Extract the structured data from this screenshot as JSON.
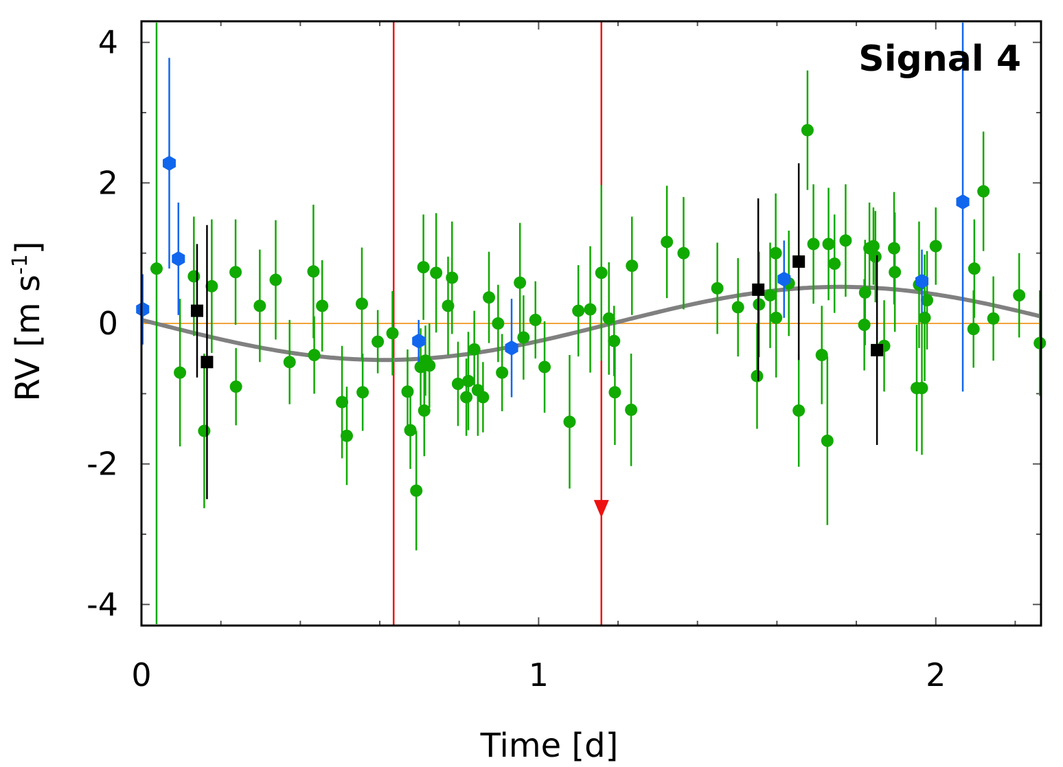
{
  "chart_data": {
    "type": "scatter",
    "title": "Signal 4",
    "xlabel": "Time [d]",
    "ylabel_main": "RV [m s",
    "ylabel_sup": "-1",
    "ylabel_close": "]",
    "xlim": [
      0,
      2.265
    ],
    "ylim": [
      -4.3,
      4.3
    ],
    "x_ticks": [
      0,
      1,
      2
    ],
    "x_tick_labels": [
      "0",
      "1",
      "2"
    ],
    "y_ticks": [
      -4,
      -2,
      0,
      2,
      4
    ],
    "y_tick_labels": [
      "-4",
      "-2",
      "0",
      "2",
      "4"
    ],
    "x_minor_ticks": [
      0.2,
      0.4,
      0.6,
      0.8,
      1.2,
      1.4,
      1.6,
      1.8,
      2.2
    ],
    "y_minor_ticks": [
      -3,
      -1,
      1,
      3
    ],
    "zero_line_color": "#f2a33a",
    "vertical_lines": [
      {
        "x": 0.635,
        "color": "#ee1111",
        "arrow": false
      },
      {
        "x": 1.158,
        "color": "#ee1111",
        "arrow": true,
        "arrow_y": -2.65
      }
    ],
    "model": {
      "color": "#808080",
      "period": 2.3,
      "amplitude": 0.52,
      "peak_x": 1.76
    },
    "series": [
      {
        "name": "green",
        "marker": "circle",
        "color": "#11aa00",
        "points": [
          [
            0.038,
            0.78,
            5.2
          ],
          [
            0.097,
            -0.7,
            1.05
          ],
          [
            0.132,
            0.67,
            0.85
          ],
          [
            0.158,
            -1.53,
            1.1
          ],
          [
            0.177,
            0.53,
            0.95
          ],
          [
            0.237,
            0.73,
            0.75
          ],
          [
            0.238,
            -0.9,
            0.55
          ],
          [
            0.298,
            0.25,
            0.8
          ],
          [
            0.338,
            0.62,
            0.85
          ],
          [
            0.373,
            -0.55,
            0.6
          ],
          [
            0.433,
            0.74,
            0.95
          ],
          [
            0.435,
            -0.45,
            0.55
          ],
          [
            0.455,
            0.25,
            0.65
          ],
          [
            0.505,
            -1.12,
            0.8
          ],
          [
            0.517,
            -1.6,
            0.7
          ],
          [
            0.555,
            0.28,
            0.8
          ],
          [
            0.557,
            -0.98,
            0.55
          ],
          [
            0.595,
            -0.26,
            0.45
          ],
          [
            0.632,
            -0.14,
            0.6
          ],
          [
            0.67,
            -0.97,
            0.6
          ],
          [
            0.677,
            -1.52,
            0.55
          ],
          [
            0.692,
            -2.38,
            0.85
          ],
          [
            0.703,
            -0.62,
            0.55
          ],
          [
            0.71,
            0.8,
            0.75
          ],
          [
            0.712,
            -1.24,
            0.65
          ],
          [
            0.715,
            -0.53,
            0.5
          ],
          [
            0.725,
            -0.6,
            0.6
          ],
          [
            0.742,
            0.72,
            0.85
          ],
          [
            0.772,
            0.25,
            0.7
          ],
          [
            0.782,
            0.65,
            0.8
          ],
          [
            0.797,
            -0.86,
            0.6
          ],
          [
            0.818,
            -1.05,
            0.55
          ],
          [
            0.823,
            -0.82,
            0.7
          ],
          [
            0.838,
            -0.37,
            0.55
          ],
          [
            0.847,
            -0.95,
            0.65
          ],
          [
            0.86,
            -1.05,
            0.5
          ],
          [
            0.875,
            0.37,
            0.65
          ],
          [
            0.898,
            0.0,
            0.55
          ],
          [
            0.908,
            -0.7,
            0.55
          ],
          [
            0.953,
            0.58,
            0.85
          ],
          [
            0.962,
            -0.2,
            0.6
          ],
          [
            0.992,
            0.05,
            0.55
          ],
          [
            1.015,
            -0.62,
            0.65
          ],
          [
            1.078,
            -1.4,
            0.95
          ],
          [
            1.1,
            0.18,
            0.65
          ],
          [
            1.13,
            0.2,
            0.9
          ],
          [
            1.158,
            0.72,
            1.25
          ],
          [
            1.177,
            0.07,
            0.8
          ],
          [
            1.19,
            -0.25,
            0.5
          ],
          [
            1.192,
            -0.98,
            0.75
          ],
          [
            1.233,
            -1.23,
            0.8
          ],
          [
            1.235,
            0.82,
            0.7
          ],
          [
            1.323,
            1.16,
            0.8
          ],
          [
            1.365,
            1.0,
            0.8
          ],
          [
            1.45,
            0.5,
            0.65
          ],
          [
            1.502,
            0.23,
            0.7
          ],
          [
            1.55,
            -0.75,
            0.75
          ],
          [
            1.555,
            0.27,
            0.75
          ],
          [
            1.583,
            0.4,
            0.75
          ],
          [
            1.597,
            1.0,
            0.85
          ],
          [
            1.598,
            0.08,
            0.85
          ],
          [
            1.63,
            0.57,
            0.75
          ],
          [
            1.655,
            -1.24,
            0.8
          ],
          [
            1.677,
            2.75,
            0.85
          ],
          [
            1.692,
            1.13,
            0.85
          ],
          [
            1.713,
            -0.45,
            0.7
          ],
          [
            1.727,
            -1.67,
            1.2
          ],
          [
            1.73,
            1.13,
            0.8
          ],
          [
            1.745,
            0.85,
            0.7
          ],
          [
            1.773,
            1.18,
            0.8
          ],
          [
            1.82,
            -0.02,
            0.65
          ],
          [
            1.822,
            0.44,
            0.75
          ],
          [
            1.833,
            1.07,
            0.65
          ],
          [
            1.843,
            1.1,
            0.55
          ],
          [
            1.848,
            0.95,
            0.65
          ],
          [
            1.87,
            -0.32,
            0.65
          ],
          [
            1.895,
            1.07,
            0.8
          ],
          [
            1.897,
            0.73,
            0.85
          ],
          [
            1.952,
            -0.92,
            0.9
          ],
          [
            1.958,
            0.55,
            0.9
          ],
          [
            1.965,
            -0.92,
            0.95
          ],
          [
            1.972,
            0.08,
            0.9
          ],
          [
            1.978,
            0.33,
            0.7
          ],
          [
            2.0,
            1.1,
            0.55
          ],
          [
            2.095,
            -0.08,
            0.55
          ],
          [
            2.097,
            0.78,
            0.7
          ],
          [
            2.12,
            1.88,
            0.85
          ],
          [
            2.145,
            0.07,
            0.6
          ],
          [
            2.21,
            0.4,
            0.6
          ],
          [
            2.262,
            -0.28,
            0.75
          ]
        ]
      },
      {
        "name": "blue",
        "marker": "hexagon",
        "color": "#1166ee",
        "points": [
          [
            0.003,
            0.2,
            0.5
          ],
          [
            0.07,
            2.28,
            1.5
          ],
          [
            0.093,
            0.92,
            0.8
          ],
          [
            0.698,
            -0.25,
            0.3
          ],
          [
            0.932,
            -0.35,
            0.7
          ],
          [
            1.618,
            0.63,
            0.55
          ],
          [
            1.965,
            0.6,
            0.45
          ],
          [
            2.068,
            1.73,
            2.7
          ]
        ]
      },
      {
        "name": "black",
        "marker": "square",
        "color": "#000000",
        "points": [
          [
            0.14,
            0.18,
            0.95
          ],
          [
            0.165,
            -0.55,
            1.95
          ],
          [
            1.553,
            0.48,
            1.3
          ],
          [
            1.655,
            0.88,
            1.4
          ],
          [
            1.852,
            -0.38,
            1.35
          ]
        ]
      }
    ]
  }
}
